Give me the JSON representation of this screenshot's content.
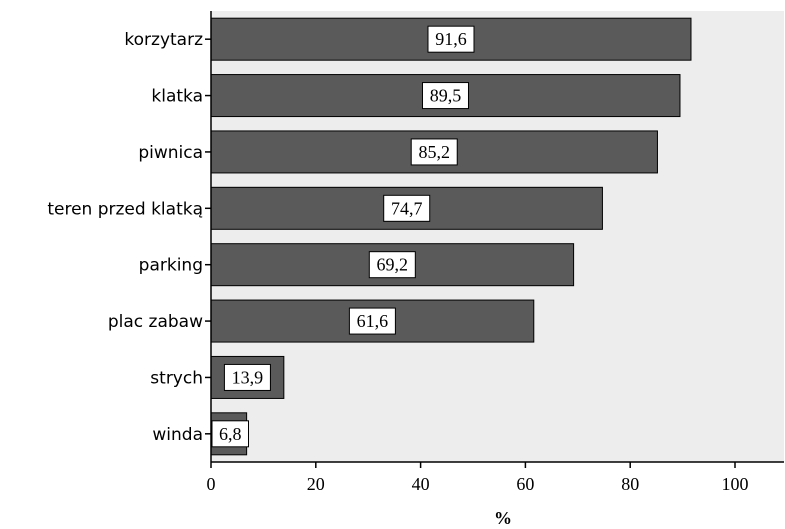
{
  "chart_data": {
    "type": "bar",
    "orientation": "horizontal",
    "categories": [
      "korzytarz",
      "klatka",
      "piwnica",
      "teren przed klatką",
      "parking",
      "plac zabaw",
      "strych",
      "winda"
    ],
    "values": [
      91.6,
      89.5,
      85.2,
      74.7,
      69.2,
      61.6,
      13.9,
      6.8
    ],
    "data_labels": [
      "91,6",
      "89,5",
      "85,2",
      "74,7",
      "69,2",
      "61,6",
      "13,9",
      "6,8"
    ],
    "xlabel": "%",
    "ylabel": "",
    "xlim": [
      0,
      110
    ],
    "x_ticks": [
      0,
      20,
      40,
      60,
      80,
      100
    ],
    "x_tick_labels": [
      "0",
      "20",
      "40",
      "60",
      "80",
      "100"
    ],
    "grid": false,
    "legend": "none",
    "colors": {
      "bar": "#5a5a5a",
      "bar_stroke": "#000000",
      "plot_background": "#ededed",
      "label_box": "#ffffff"
    }
  }
}
